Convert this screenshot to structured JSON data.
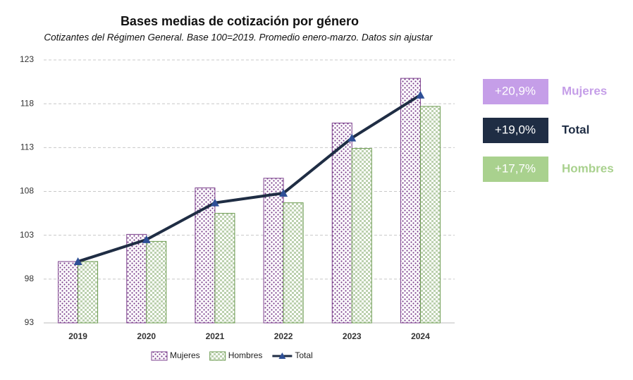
{
  "chart_data": {
    "type": "bar_line",
    "title": "Bases medias de cotización por género",
    "subtitle": "Cotizantes del Régimen General. Base 100=2019. Promedio enero-marzo. Datos sin ajustar",
    "categories": [
      "2019",
      "2020",
      "2021",
      "2022",
      "2023",
      "2024"
    ],
    "series": [
      {
        "name": "Mujeres",
        "type": "bar",
        "color": "#7b3f8c",
        "values": [
          100.0,
          103.1,
          108.4,
          109.5,
          115.8,
          120.9
        ]
      },
      {
        "name": "Hombres",
        "type": "bar",
        "color": "#6a9a4e",
        "values": [
          100.0,
          102.3,
          105.5,
          106.7,
          112.9,
          117.7
        ]
      },
      {
        "name": "Total",
        "type": "line",
        "color": "#1f2d44",
        "values": [
          100.0,
          102.5,
          106.7,
          107.8,
          114.1,
          119.0
        ]
      }
    ],
    "ylim": [
      93,
      123
    ],
    "yticks": [
      93,
      98,
      103,
      108,
      113,
      118,
      123
    ],
    "grid": true,
    "callouts": [
      {
        "text": "+20,9%",
        "label": "Mujeres",
        "color": "#c59ee8"
      },
      {
        "text": "+19,0%",
        "label": "Total",
        "color": "#1f2d44"
      },
      {
        "text": "+17,7%",
        "label": "Hombres",
        "color": "#a9d18e"
      }
    ]
  }
}
